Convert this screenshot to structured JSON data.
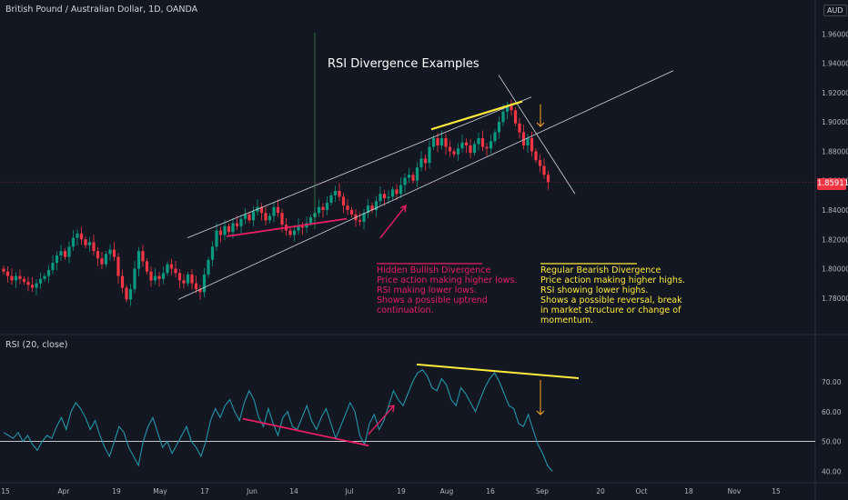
{
  "header": {
    "symbol": "British Pound / Australian Dollar, 1D, OANDA",
    "currency": "AUD",
    "indicator": "RSI (20, close)"
  },
  "annotations": {
    "title": "RSI Divergence Examples",
    "bullish": [
      "Hidden Bullish Divergence",
      "Price action making higher lows.",
      "RSI making lower lows.",
      "Shows a possible uptrend",
      "continuation."
    ],
    "bearish": [
      "Regular Bearish Divergence",
      "Price action making higher highs.",
      "RSI showing lower highs.",
      "Shows a possible reversal, break",
      "in market structure or change of",
      "momentum."
    ]
  },
  "colors": {
    "background": "#131722",
    "up": "#26a69a",
    "up_candle": "#089981",
    "down": "#f23645",
    "rsi_line": "#2196a8",
    "bullish_annotation": "#e91e63",
    "bearish_annotation": "#ffeb3b",
    "channel": "#d1d4dc"
  },
  "chart_data": [
    {
      "type": "candlestick",
      "title": "British Pound / Australian Dollar, 1D, OANDA",
      "y_ticks": [
        1.78,
        1.8,
        1.82,
        1.84,
        1.86,
        1.88,
        1.9,
        1.92,
        1.94,
        1.96
      ],
      "ylim": [
        1.765,
        1.972
      ],
      "last_price": "1.85911",
      "x_ticks": [
        "15",
        "Apr",
        "19",
        "May",
        "17",
        "Jun",
        "14",
        "Jul",
        "19",
        "Aug",
        "16",
        "Sep",
        "20",
        "Oct",
        "18",
        "Nov",
        "15"
      ],
      "close": [
        1.798,
        1.795,
        1.792,
        1.795,
        1.793,
        1.791,
        1.789,
        1.787,
        1.79,
        1.793,
        1.795,
        1.799,
        1.804,
        1.809,
        1.812,
        1.808,
        1.815,
        1.821,
        1.824,
        1.82,
        1.816,
        1.818,
        1.812,
        1.807,
        1.803,
        1.81,
        1.813,
        1.808,
        1.795,
        1.787,
        1.779,
        1.786,
        1.8,
        1.812,
        1.805,
        1.798,
        1.792,
        1.795,
        1.793,
        1.797,
        1.803,
        1.8,
        1.797,
        1.792,
        1.79,
        1.796,
        1.79,
        1.786,
        1.784,
        1.796,
        1.806,
        1.815,
        1.826,
        1.823,
        1.829,
        1.825,
        1.831,
        1.829,
        1.834,
        1.837,
        1.833,
        1.839,
        1.842,
        1.838,
        1.833,
        1.836,
        1.842,
        1.838,
        1.83,
        1.826,
        1.823,
        1.826,
        1.829,
        1.828,
        1.831,
        1.835,
        1.838,
        1.842,
        1.84,
        1.845,
        1.85,
        1.853,
        1.849,
        1.843,
        1.84,
        1.837,
        1.833,
        1.832,
        1.838,
        1.843,
        1.84,
        1.846,
        1.851,
        1.848,
        1.849,
        1.854,
        1.851,
        1.857,
        1.862,
        1.864,
        1.86,
        1.869,
        1.875,
        1.872,
        1.883,
        1.889,
        1.884,
        1.889,
        1.883,
        1.88,
        1.878,
        1.882,
        1.886,
        1.884,
        1.879,
        1.885,
        1.889,
        1.883,
        1.882,
        1.887,
        1.893,
        1.9,
        1.907,
        1.911,
        1.908,
        1.899,
        1.893,
        1.884,
        1.889,
        1.88,
        1.874,
        1.87,
        1.864,
        1.859
      ],
      "annotation_lines": [
        "channel upper",
        "channel lower",
        "steep trendline",
        "yellow highs line",
        "pink lows line",
        "vertical line",
        "arrows"
      ]
    },
    {
      "type": "line",
      "title": "RSI (20, close)",
      "y_ticks": [
        40.0,
        50.0,
        60.0,
        70.0
      ],
      "ylim": [
        38.0,
        78.5
      ],
      "reference_level": 50.0,
      "values": [
        53,
        52,
        51,
        53,
        50,
        52,
        49,
        47,
        50,
        52,
        51,
        55,
        58,
        54,
        60,
        63,
        61,
        58,
        54,
        57,
        52,
        48,
        45,
        50,
        55,
        53,
        48,
        45,
        42,
        50,
        55,
        58,
        53,
        48,
        50,
        46,
        49,
        52,
        55,
        50,
        48,
        45,
        50,
        57,
        61,
        58,
        62,
        64,
        60,
        57,
        63,
        67,
        64,
        58,
        55,
        61,
        56,
        52,
        58,
        60,
        55,
        54,
        58,
        62,
        57,
        54,
        58,
        61,
        56,
        51,
        55,
        59,
        63,
        60,
        52,
        49,
        56,
        59,
        54,
        57,
        62,
        67,
        64,
        62,
        66,
        70,
        73,
        74,
        72,
        68,
        67,
        71,
        69,
        64,
        62,
        68,
        66,
        63,
        60,
        64,
        68,
        71,
        73,
        70,
        66,
        62,
        61,
        56,
        55,
        59,
        54,
        49,
        46,
        42,
        40
      ],
      "annotation_lines": [
        "yellow lower highs line",
        "pink lower lows line",
        "arrows"
      ]
    }
  ]
}
